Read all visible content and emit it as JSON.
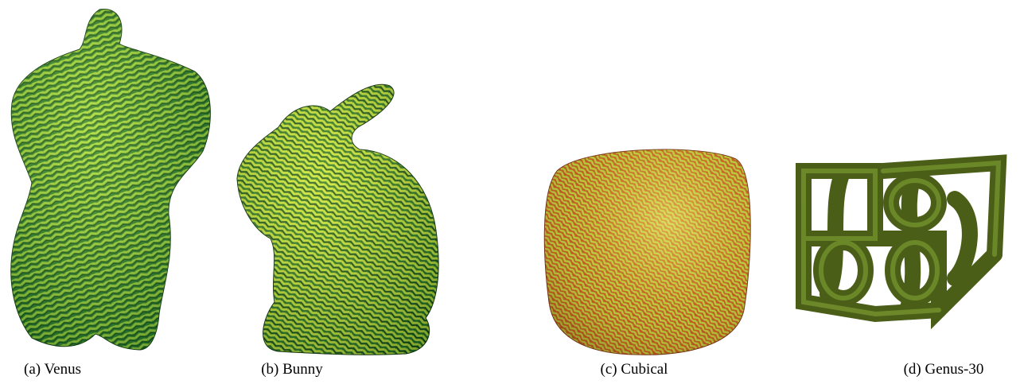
{
  "figure": {
    "panels": [
      {
        "caption": "(a) Venus"
      },
      {
        "caption": "(b) Bunny"
      },
      {
        "caption": "(c) Cubical"
      },
      {
        "caption": "(d) Genus-30"
      }
    ]
  }
}
